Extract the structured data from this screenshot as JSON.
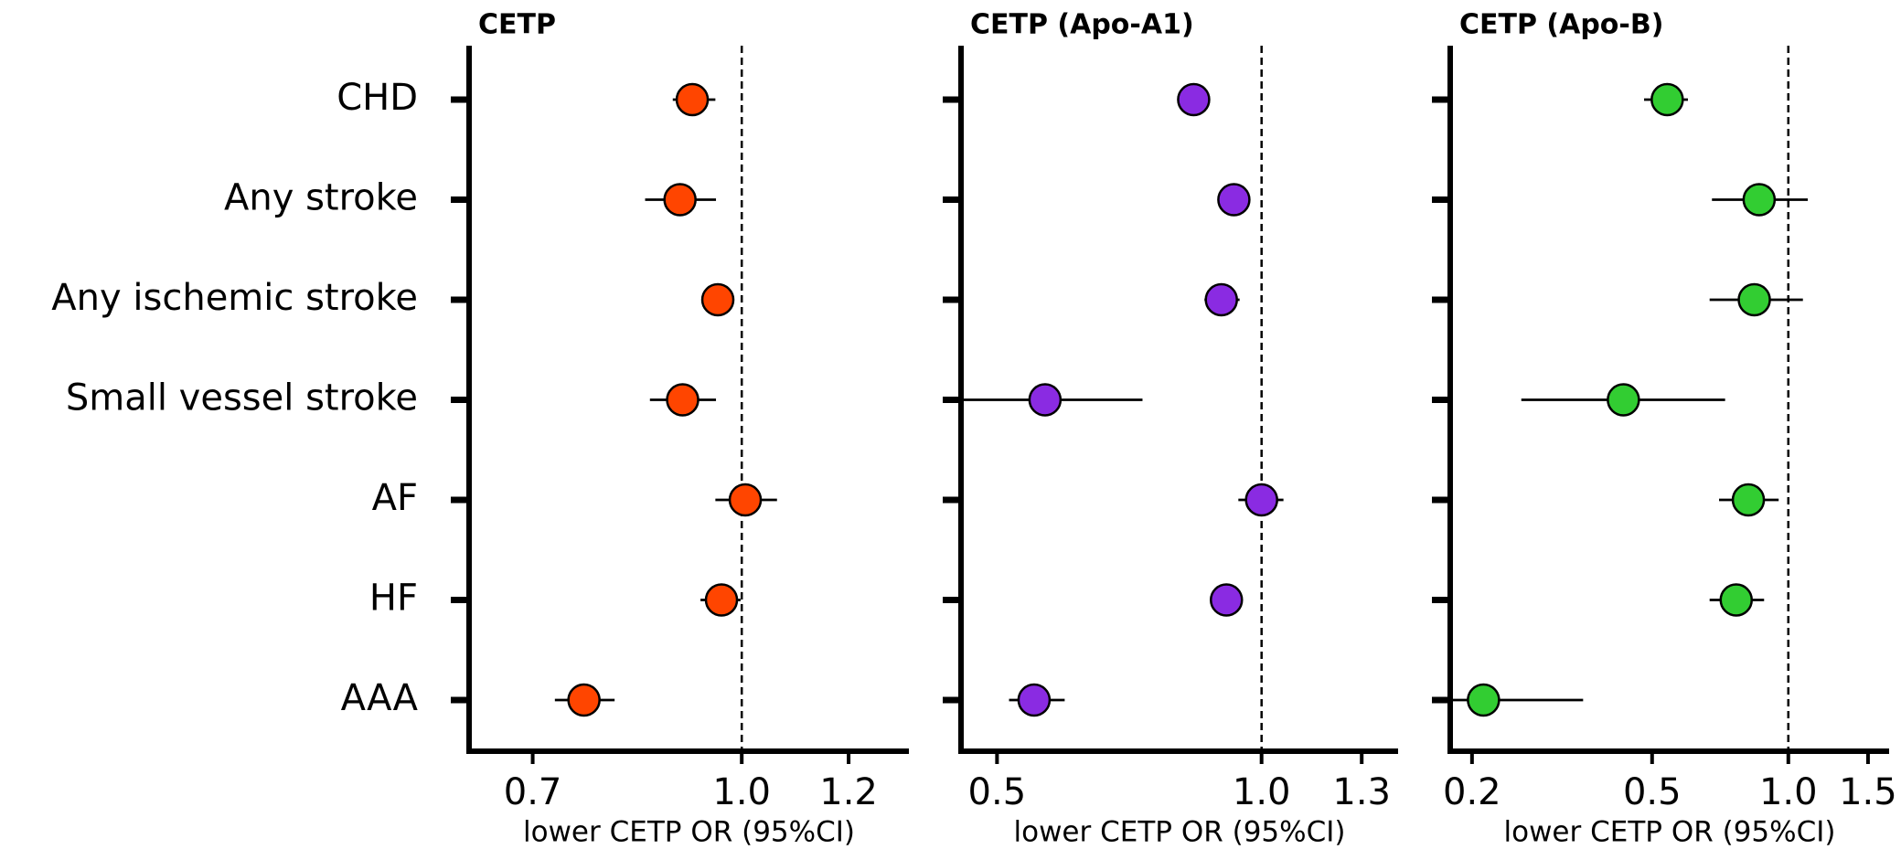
{
  "chart_data": [
    {
      "type": "forest",
      "title": "CETP",
      "xlabel": "lower CETP OR (95%CI)",
      "categories": [
        "CHD",
        "Any stroke",
        "Any ischemic stroke",
        "Small vessel stroke",
        "AF",
        "HF",
        "AAA"
      ],
      "xscale": "log",
      "xlim": [
        0.628,
        1.33
      ],
      "xticks": [
        0.7,
        {
          "value": 1,
          "label": "1.0"
        },
        1.2
      ],
      "reference_line": 1,
      "color": "#ff4500",
      "values": [
        0.919,
        0.9,
        0.96,
        0.904,
        1.006,
        0.966,
        0.764
      ],
      "ci_low": [
        0.889,
        0.848,
        0.95,
        0.855,
        0.956,
        0.932,
        0.727
      ],
      "ci_high": [
        0.956,
        0.957,
        0.97,
        0.957,
        1.062,
        0.998,
        0.805
      ]
    },
    {
      "type": "forest",
      "title": "CETP (Apo-A1)",
      "xlabel": "lower CETP OR (95%CI)",
      "xscale": "log",
      "xlim": [
        0.455,
        1.43
      ],
      "xticks": [
        0.5,
        {
          "value": 1,
          "label": "1.0"
        },
        1.3
      ],
      "reference_line": 1,
      "color": "#8a2be2",
      "values": [
        0.837,
        0.93,
        0.9,
        0.567,
        1.0,
        0.912,
        0.551
      ],
      "ci_low": [
        0.83,
        0.909,
        0.861,
        0.44,
        0.941,
        0.9,
        0.516
      ],
      "ci_high": [
        0.845,
        0.953,
        0.944,
        0.732,
        1.059,
        0.925,
        0.597
      ]
    },
    {
      "type": "forest",
      "title": "CETP (Apo-B)",
      "xlabel": "lower CETP OR (95%CI)",
      "xscale": "log",
      "xlim": [
        0.179,
        1.67
      ],
      "xticks": [
        0.2,
        0.5,
        {
          "value": 1,
          "label": "1.0"
        },
        1.5
      ],
      "reference_line": 1,
      "color": "#32cd32",
      "values": [
        0.54,
        0.862,
        0.841,
        0.432,
        0.816,
        0.767,
        0.212
      ],
      "ci_low": [
        0.48,
        0.678,
        0.67,
        0.257,
        0.703,
        0.67,
        0.16
      ],
      "ci_high": [
        0.6,
        1.104,
        1.077,
        0.725,
        0.952,
        0.884,
        0.352
      ]
    }
  ]
}
